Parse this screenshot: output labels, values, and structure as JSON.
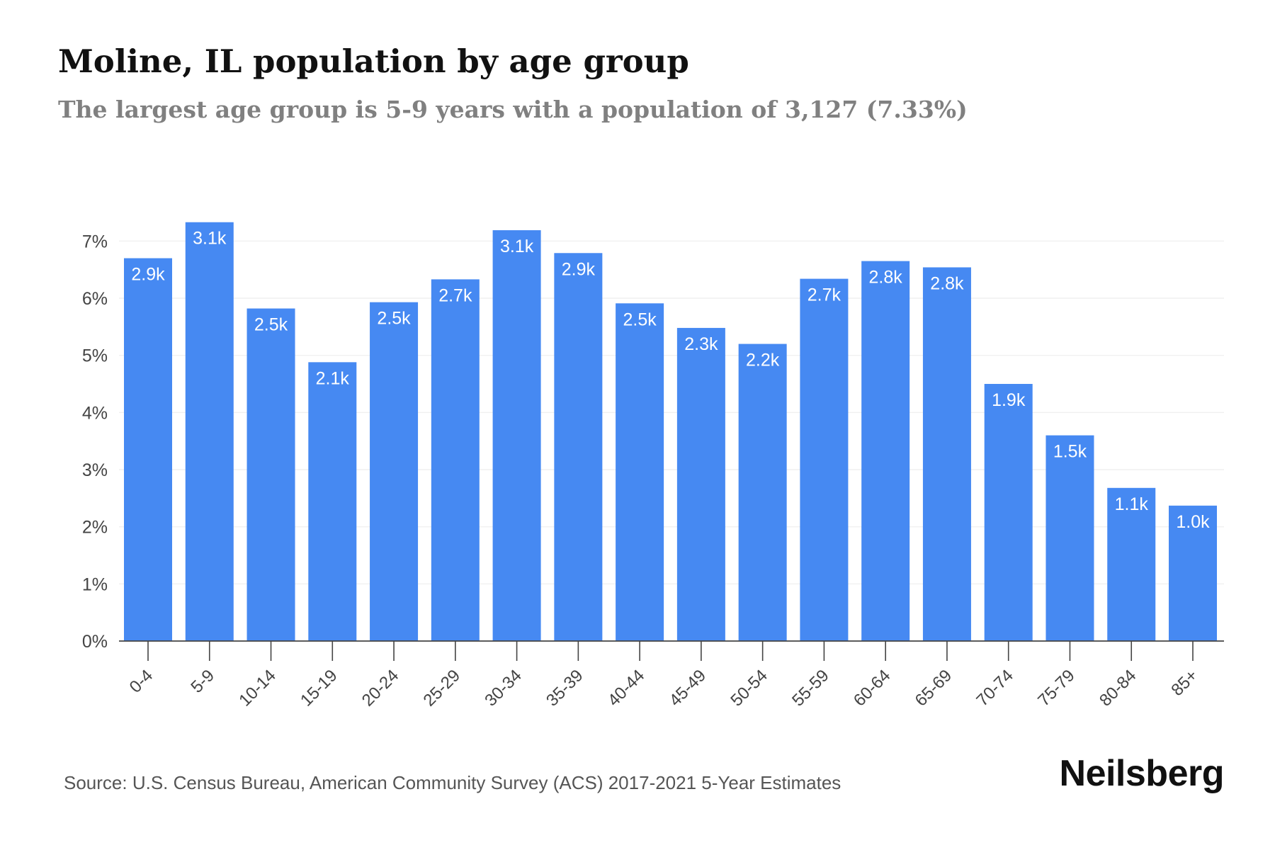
{
  "header": {
    "title": "Moline, IL population by age group",
    "subtitle": "The largest age group is 5-9 years with a population of 3,127 (7.33%)"
  },
  "footer": {
    "source": "Source: U.S. Census Bureau, American Community Survey (ACS) 2017-2021 5-Year Estimates",
    "brand": "Neilsberg"
  },
  "colors": {
    "bar": "#4689f2",
    "bar_label": "#ffffff",
    "grid": "#eeeeee",
    "axis": "#444444",
    "tick_text": "#444444"
  },
  "chart_data": {
    "type": "bar",
    "title": "Moline, IL population by age group",
    "subtitle": "The largest age group is 5-9 years with a population of 3,127 (7.33%)",
    "xlabel": "",
    "ylabel": "",
    "categories": [
      "0-4",
      "5-9",
      "10-14",
      "15-19",
      "20-24",
      "25-29",
      "30-34",
      "35-39",
      "40-44",
      "45-49",
      "50-54",
      "55-59",
      "60-64",
      "65-69",
      "70-74",
      "75-79",
      "80-84",
      "85+"
    ],
    "series": [
      {
        "values": [
          6.7,
          7.33,
          5.82,
          4.88,
          5.93,
          6.33,
          7.19,
          6.79,
          5.91,
          5.48,
          5.2,
          6.34,
          6.65,
          6.54,
          4.5,
          3.6,
          2.68,
          2.37
        ],
        "labels": [
          "2.9k",
          "3.1k",
          "2.5k",
          "2.1k",
          "2.5k",
          "2.7k",
          "3.1k",
          "2.9k",
          "2.5k",
          "2.3k",
          "2.2k",
          "2.7k",
          "2.8k",
          "2.8k",
          "1.9k",
          "1.5k",
          "1.1k",
          "1.0k"
        ]
      }
    ],
    "yticks": [
      "0%",
      "1%",
      "2%",
      "3%",
      "4%",
      "5%",
      "6%",
      "7%"
    ],
    "ylim": [
      0,
      7.5
    ],
    "grid": true,
    "legend": "none"
  }
}
